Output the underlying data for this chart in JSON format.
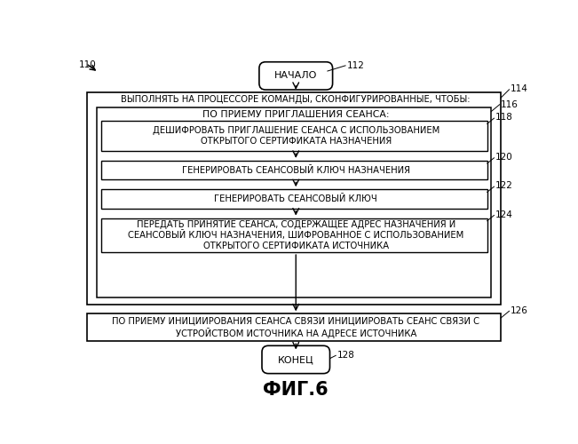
{
  "title": "ФИГ.6",
  "bg_color": "#ffffff",
  "start_label": "НАЧАЛО",
  "end_label": "КОНЕЦ",
  "ref_110": "110",
  "ref_112": "112",
  "ref_114": "114",
  "ref_116": "116",
  "ref_118": "118",
  "ref_120": "120",
  "ref_122": "122",
  "ref_124": "124",
  "ref_126": "126",
  "ref_128": "128",
  "outer_header": "ВЫПОЛНЯТЬ НА ПРОЦЕССОРЕ КОМАНДЫ, СКОНФИГУРИРОВАННЫЕ, ЧТОБЫ:",
  "inner_header": "ПО ПРИЕМУ ПРИГЛАШЕНИЯ СЕАНСА:",
  "box118_text": "ДЕШИФРОВАТЬ ПРИГЛАШЕНИЕ СЕАНСА С ИСПОЛЬЗОВАНИЕМ\nОТКРЫТОГО СЕРТИФИКАТА НАЗНАЧЕНИЯ",
  "box120_text": "ГЕНЕРИРОВАТЬ СЕАНСОВЫЙ КЛЮЧ НАЗНАЧЕНИЯ",
  "box122_text": "ГЕНЕРИРОВАТЬ СЕАНСОВЫЙ КЛЮЧ",
  "box124_text": "ПЕРЕДАТЬ ПРИНЯТИЕ СЕАНСА, СОДЕРЖАЩЕЕ АДРЕС НАЗНАЧЕНИЯ И\nСЕАНСОВЫЙ КЛЮЧ НАЗНАЧЕНИЯ, ШИФРОВАННОЕ С ИСПОЛЬЗОВАНИЕМ\nОТКРЫТОГО СЕРТИФИКАТА ИСТОЧНИКА",
  "box126_text": "ПО ПРИЕМУ ИНИЦИИРОВАНИЯ СЕАНСА СВЯЗИ ИНИЦИИРОВАТЬ СЕАНС СВЯЗИ С\nУСТРОЙСТВОМ ИСТОЧНИКА НА АДРЕСЕ ИСТОЧНИКА"
}
